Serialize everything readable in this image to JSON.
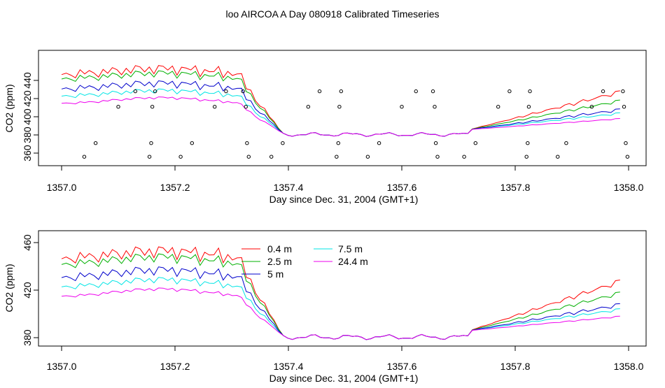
{
  "title": "loo AIRCOA A  Day 080918  Calibrated Timeseries",
  "chart_data": [
    {
      "type": "scatter+line",
      "ylabel": "CO2 (ppm)",
      "xlabel": "Day since Dec. 31, 2004 (GMT+1)",
      "xlim": [
        1357.0,
        1358.0
      ],
      "ylim": [
        349,
        433
      ],
      "x_ticks": [
        "1357.0",
        "1357.2",
        "1357.4",
        "1357.6",
        "1357.8",
        "1358.0"
      ],
      "y_ticks": [
        "360",
        "380",
        "400",
        "420",
        "440"
      ],
      "colors": {
        "s04": "#ff0000",
        "s25": "#00b000",
        "s5": "#0000cc",
        "s75": "#00e5e5",
        "s244": "#ee00ee",
        "marker": "#000000"
      },
      "scatter": [
        [
          1357.04,
          356
        ],
        [
          1357.06,
          371
        ],
        [
          1357.1,
          411
        ],
        [
          1357.13,
          428
        ],
        [
          1357.155,
          356
        ],
        [
          1357.158,
          371
        ],
        [
          1357.16,
          411
        ],
        [
          1357.165,
          428
        ],
        [
          1357.21,
          356
        ],
        [
          1357.23,
          371
        ],
        [
          1357.27,
          411
        ],
        [
          1357.29,
          428
        ],
        [
          1357.32,
          428
        ],
        [
          1357.325,
          411
        ],
        [
          1357.327,
          371
        ],
        [
          1357.33,
          356
        ],
        [
          1357.37,
          356
        ],
        [
          1357.39,
          371
        ],
        [
          1357.435,
          411
        ],
        [
          1357.455,
          428
        ],
        [
          1357.485,
          356
        ],
        [
          1357.488,
          371
        ],
        [
          1357.49,
          411
        ],
        [
          1357.493,
          428
        ],
        [
          1357.54,
          356
        ],
        [
          1357.56,
          371
        ],
        [
          1357.6,
          411
        ],
        [
          1357.625,
          428
        ],
        [
          1357.655,
          428
        ],
        [
          1357.658,
          411
        ],
        [
          1357.66,
          371
        ],
        [
          1357.663,
          356
        ],
        [
          1357.71,
          356
        ],
        [
          1357.73,
          371
        ],
        [
          1357.77,
          411
        ],
        [
          1357.79,
          428
        ],
        [
          1357.82,
          356
        ],
        [
          1357.822,
          371
        ],
        [
          1357.824,
          411
        ],
        [
          1357.826,
          428
        ],
        [
          1357.875,
          356
        ],
        [
          1357.89,
          371
        ],
        [
          1357.935,
          411
        ],
        [
          1357.955,
          428
        ],
        [
          1357.99,
          428
        ],
        [
          1357.992,
          411
        ],
        [
          1357.995,
          371
        ],
        [
          1357.998,
          356
        ]
      ]
    },
    {
      "type": "line",
      "ylabel": "CO2 (ppm)",
      "xlabel": "Day since Dec. 31, 2004 (GMT+1)",
      "xlim": [
        1357.0,
        1358.0
      ],
      "ylim": [
        376,
        468
      ],
      "x_ticks": [
        "1357.0",
        "1357.2",
        "1357.4",
        "1357.6",
        "1357.8",
        "1358.0"
      ],
      "y_ticks": [
        "380",
        "420",
        "460"
      ],
      "legend": {
        "placement": "top-center",
        "entries": [
          {
            "label": "0.4 m",
            "color": "#ff0000"
          },
          {
            "label": "7.5 m",
            "color": "#00e5e5"
          },
          {
            "label": "2.5 m",
            "color": "#00b000"
          },
          {
            "label": "24.4 m",
            "color": "#ee00ee"
          },
          {
            "label": "5 m",
            "color": "#0000cc"
          }
        ]
      }
    }
  ]
}
